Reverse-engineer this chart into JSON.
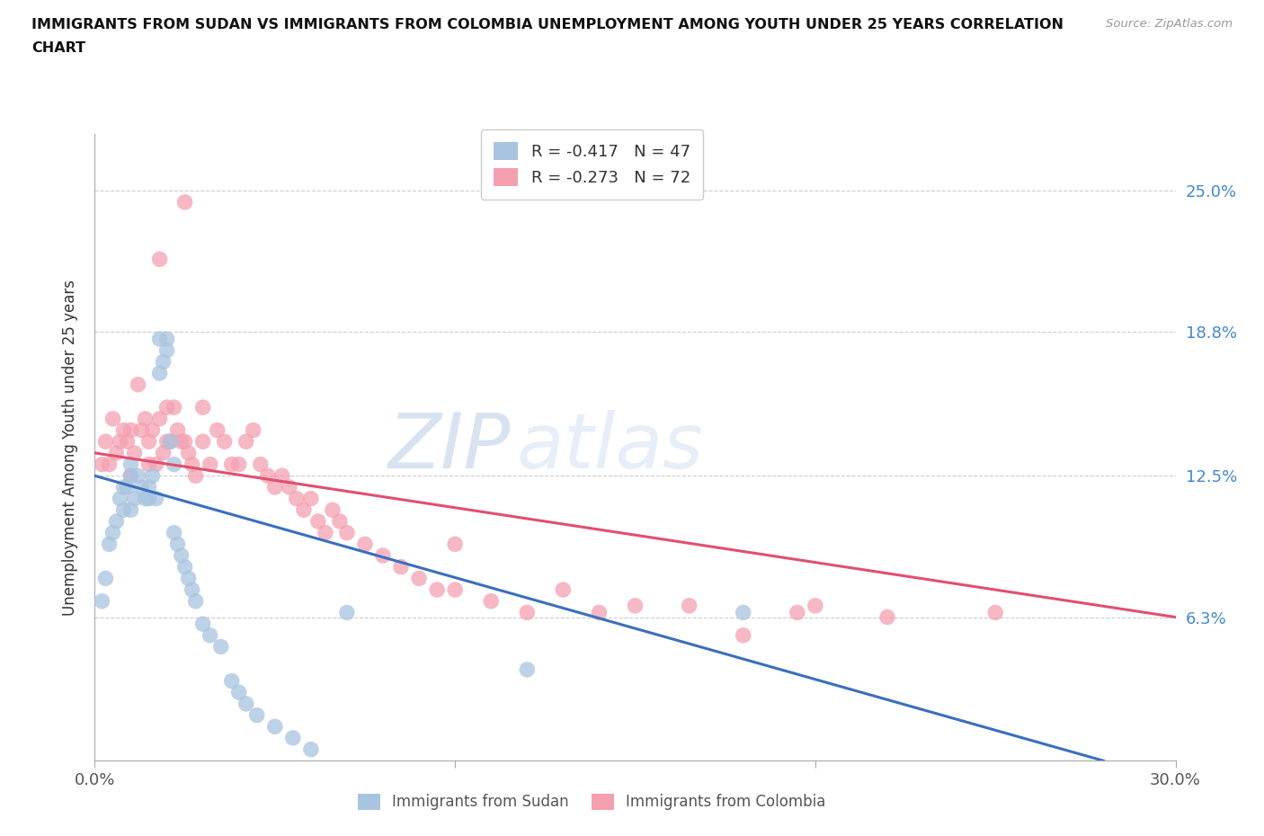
{
  "title_line1": "IMMIGRANTS FROM SUDAN VS IMMIGRANTS FROM COLOMBIA UNEMPLOYMENT AMONG YOUTH UNDER 25 YEARS CORRELATION",
  "title_line2": "CHART",
  "source": "Source: ZipAtlas.com",
  "ylabel_label": "Unemployment Among Youth under 25 years",
  "xlim": [
    0.0,
    0.3
  ],
  "ylim": [
    0.0,
    0.275
  ],
  "ytick_vals": [
    0.063,
    0.125,
    0.188,
    0.25
  ],
  "ytick_labels": [
    "6.3%",
    "12.5%",
    "18.8%",
    "25.0%"
  ],
  "xtick_vals": [
    0.0,
    0.1,
    0.2,
    0.3
  ],
  "xtick_labels": [
    "0.0%",
    "",
    "",
    "30.0%"
  ],
  "sudan_R": -0.417,
  "sudan_N": 47,
  "colombia_R": -0.273,
  "colombia_N": 72,
  "sudan_color": "#a8c4e0",
  "colombia_color": "#f4a0b0",
  "sudan_line_color": "#3a6fbf",
  "colombia_line_color": "#e05070",
  "watermark_zip": "ZIP",
  "watermark_atlas": "atlas",
  "sudan_line_x": [
    0.0,
    0.28
  ],
  "sudan_line_y": [
    0.125,
    0.0
  ],
  "colombia_line_x": [
    0.0,
    0.3
  ],
  "colombia_line_y": [
    0.135,
    0.063
  ],
  "sudan_scatter_x": [
    0.002,
    0.003,
    0.004,
    0.005,
    0.006,
    0.007,
    0.008,
    0.008,
    0.009,
    0.01,
    0.01,
    0.01,
    0.011,
    0.012,
    0.013,
    0.014,
    0.015,
    0.015,
    0.016,
    0.017,
    0.018,
    0.018,
    0.019,
    0.02,
    0.02,
    0.021,
    0.022,
    0.022,
    0.023,
    0.024,
    0.025,
    0.026,
    0.027,
    0.028,
    0.03,
    0.032,
    0.035,
    0.038,
    0.04,
    0.042,
    0.045,
    0.05,
    0.055,
    0.06,
    0.07,
    0.12,
    0.18
  ],
  "sudan_scatter_y": [
    0.07,
    0.08,
    0.095,
    0.1,
    0.105,
    0.115,
    0.11,
    0.12,
    0.12,
    0.125,
    0.13,
    0.11,
    0.115,
    0.125,
    0.12,
    0.115,
    0.12,
    0.115,
    0.125,
    0.115,
    0.17,
    0.185,
    0.175,
    0.18,
    0.185,
    0.14,
    0.13,
    0.1,
    0.095,
    0.09,
    0.085,
    0.08,
    0.075,
    0.07,
    0.06,
    0.055,
    0.05,
    0.035,
    0.03,
    0.025,
    0.02,
    0.015,
    0.01,
    0.005,
    0.065,
    0.04,
    0.065
  ],
  "colombia_scatter_x": [
    0.002,
    0.003,
    0.004,
    0.005,
    0.006,
    0.007,
    0.008,
    0.009,
    0.01,
    0.01,
    0.011,
    0.012,
    0.013,
    0.014,
    0.015,
    0.015,
    0.016,
    0.017,
    0.018,
    0.019,
    0.02,
    0.02,
    0.021,
    0.022,
    0.023,
    0.024,
    0.025,
    0.026,
    0.027,
    0.028,
    0.03,
    0.03,
    0.032,
    0.034,
    0.036,
    0.038,
    0.04,
    0.042,
    0.044,
    0.046,
    0.048,
    0.05,
    0.052,
    0.054,
    0.056,
    0.058,
    0.06,
    0.062,
    0.064,
    0.066,
    0.068,
    0.07,
    0.075,
    0.08,
    0.085,
    0.09,
    0.095,
    0.1,
    0.1,
    0.11,
    0.12,
    0.13,
    0.14,
    0.15,
    0.165,
    0.18,
    0.195,
    0.2,
    0.22,
    0.25,
    0.018,
    0.025
  ],
  "colombia_scatter_y": [
    0.13,
    0.14,
    0.13,
    0.15,
    0.135,
    0.14,
    0.145,
    0.14,
    0.125,
    0.145,
    0.135,
    0.165,
    0.145,
    0.15,
    0.14,
    0.13,
    0.145,
    0.13,
    0.15,
    0.135,
    0.14,
    0.155,
    0.14,
    0.155,
    0.145,
    0.14,
    0.14,
    0.135,
    0.13,
    0.125,
    0.14,
    0.155,
    0.13,
    0.145,
    0.14,
    0.13,
    0.13,
    0.14,
    0.145,
    0.13,
    0.125,
    0.12,
    0.125,
    0.12,
    0.115,
    0.11,
    0.115,
    0.105,
    0.1,
    0.11,
    0.105,
    0.1,
    0.095,
    0.09,
    0.085,
    0.08,
    0.075,
    0.075,
    0.095,
    0.07,
    0.065,
    0.075,
    0.065,
    0.068,
    0.068,
    0.055,
    0.065,
    0.068,
    0.063,
    0.065,
    0.22,
    0.245
  ]
}
